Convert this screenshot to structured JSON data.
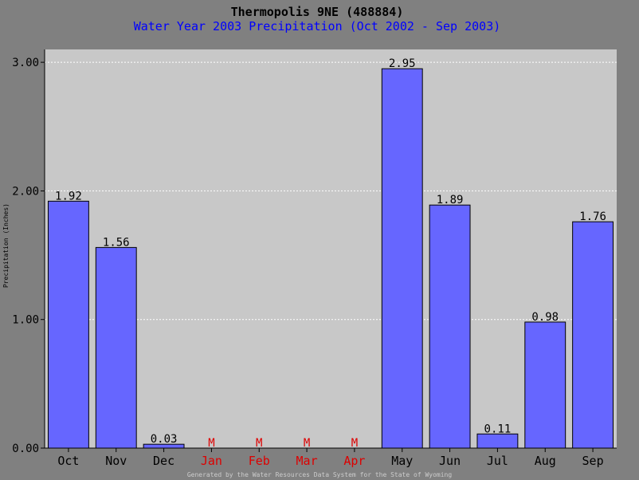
{
  "chart_data": {
    "type": "bar",
    "title": "Thermopolis 9NE (488884)",
    "subtitle": "Water Year 2003 Precipitation (Oct 2002 - Sep 2003)",
    "ylabel": "Precipitation (Inches)",
    "xlabel": "",
    "ylim": [
      0,
      3.1
    ],
    "yticks": [
      "0.00",
      "1.00",
      "2.00",
      "3.00"
    ],
    "ytick_values": [
      0,
      1,
      2,
      3
    ],
    "grid": true,
    "categories": [
      "Oct",
      "Nov",
      "Dec",
      "Jan",
      "Feb",
      "Mar",
      "Apr",
      "May",
      "Jun",
      "Jul",
      "Aug",
      "Sep"
    ],
    "values": [
      1.92,
      1.56,
      0.03,
      null,
      null,
      null,
      null,
      2.95,
      1.89,
      0.11,
      0.98,
      1.76
    ],
    "value_labels": [
      "1.92",
      "1.56",
      "0.03",
      "M",
      "M",
      "M",
      "M",
      "2.95",
      "1.89",
      "0.11",
      "0.98",
      "1.76"
    ],
    "bar_color": "#6666ff",
    "missing_color": "#dd0000",
    "plot_background": "#c8c8c8",
    "footer": "Generated by the Water Resources Data System for the State of Wyoming"
  }
}
